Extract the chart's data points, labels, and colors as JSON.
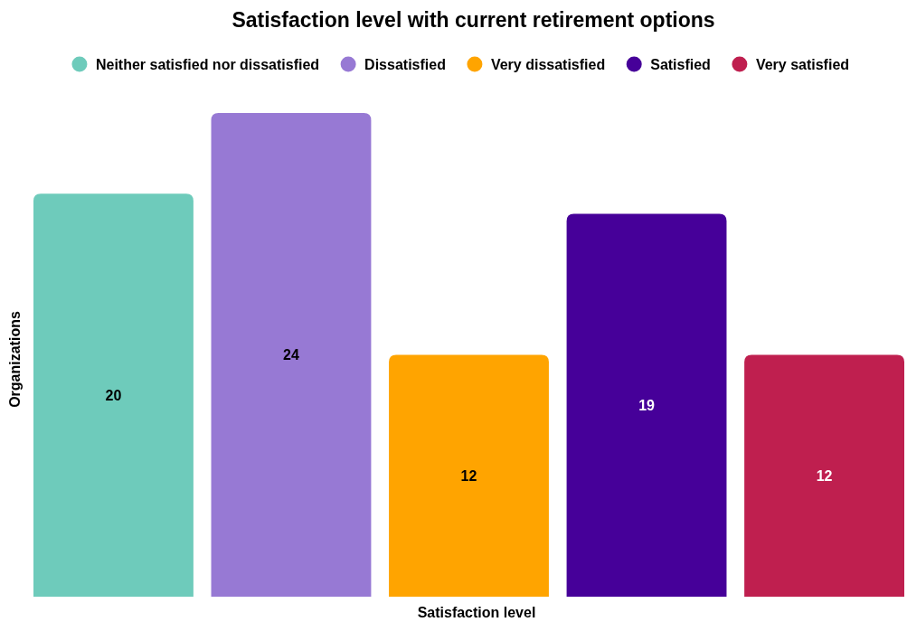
{
  "chart_data": {
    "type": "bar",
    "title": "Satisfaction level with current retirement options",
    "xlabel": "Satisfaction level",
    "ylabel": "Organizations",
    "categories": [
      null
    ],
    "series": [
      {
        "name": "Neither satisfied nor dissatisfied",
        "color": "#6ecbbb",
        "values": [
          20
        ]
      },
      {
        "name": "Dissatisfied",
        "color": "#9779d4",
        "values": [
          24
        ]
      },
      {
        "name": "Very dissatisfied",
        "color": "#ffa400",
        "values": [
          12
        ]
      },
      {
        "name": "Satisfied",
        "color": "#460099",
        "values": [
          19
        ]
      },
      {
        "name": "Very satisfied",
        "color": "#bf1f4f",
        "values": [
          12
        ]
      }
    ],
    "legend": "top",
    "data_labels": true
  }
}
